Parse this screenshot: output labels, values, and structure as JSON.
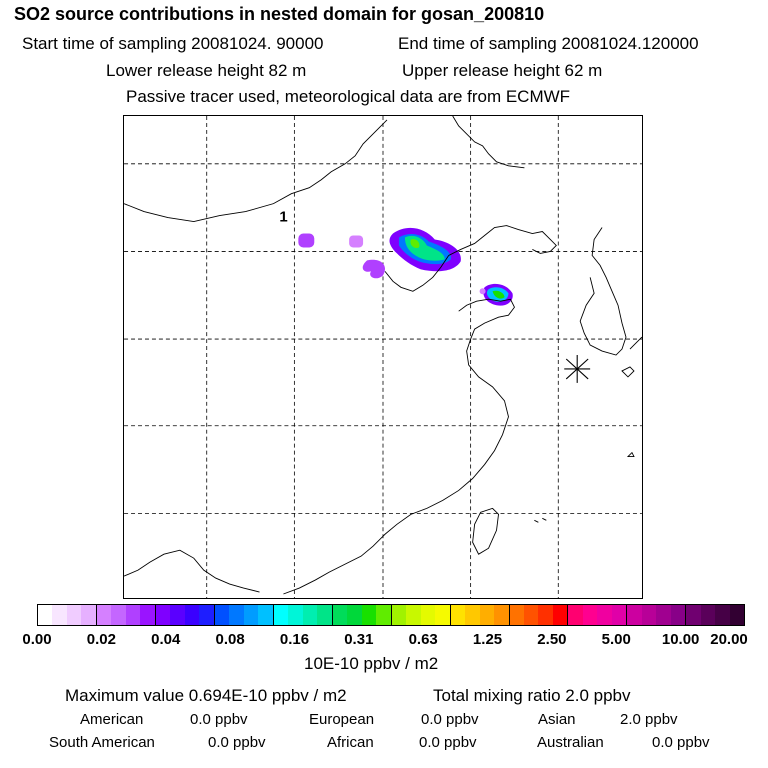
{
  "header": {
    "title": "SO2 source contributions in nested domain for gosan_200810",
    "start": "Start time of sampling 20081024. 90000",
    "end": "End time of sampling 20081024.120000",
    "lower": "Lower release height   82 m",
    "upper": "Upper release height   62 m",
    "tracer": "Passive tracer used, meteorological data are from ECMWF"
  },
  "map": {
    "source_label": "1"
  },
  "colorbar": {
    "ticks": [
      "0.00",
      "0.02",
      "0.04",
      "0.08",
      "0.16",
      "0.31",
      "0.63",
      "1.25",
      "2.50",
      "5.00",
      "10.00",
      "20.00"
    ],
    "units": "10E-10 ppbv / m2",
    "colors": [
      "#ffffff",
      "#f8e6ff",
      "#f0ccff",
      "#e6b0ff",
      "#d580ff",
      "#c466ff",
      "#b040ff",
      "#9a14ff",
      "#7f00ff",
      "#5a00ff",
      "#3a00ff",
      "#1e1eff",
      "#0050ff",
      "#0078ff",
      "#009cff",
      "#00c0ff",
      "#00ffff",
      "#00f5d8",
      "#00eeb0",
      "#00e488",
      "#00dc5a",
      "#00d83a",
      "#18e000",
      "#60ec00",
      "#a0f200",
      "#c8f800",
      "#e4fa00",
      "#f6fa00",
      "#ffe200",
      "#ffc800",
      "#ffae00",
      "#ff9200",
      "#ff7200",
      "#ff5200",
      "#ff3000",
      "#ff0000",
      "#ff0070",
      "#ff0090",
      "#f000a0",
      "#e000a8",
      "#cc00a0",
      "#b80098",
      "#a00090",
      "#880088",
      "#700070",
      "#5a005a",
      "#460046",
      "#320032"
    ]
  },
  "summary": {
    "max_value": "Maximum value  0.694E-10 ppbv / m2",
    "total": "Total mixing ratio        2.0 ppbv",
    "regions": [
      {
        "name": "American",
        "value": "0.0 ppbv"
      },
      {
        "name": "European",
        "value": "0.0 ppbv"
      },
      {
        "name": "Asian",
        "value": "2.0 ppbv"
      },
      {
        "name": "South American",
        "value": "0.0 ppbv"
      },
      {
        "name": "African",
        "value": "0.0 ppbv"
      },
      {
        "name": "Australian",
        "value": "0.0 ppbv"
      }
    ]
  }
}
